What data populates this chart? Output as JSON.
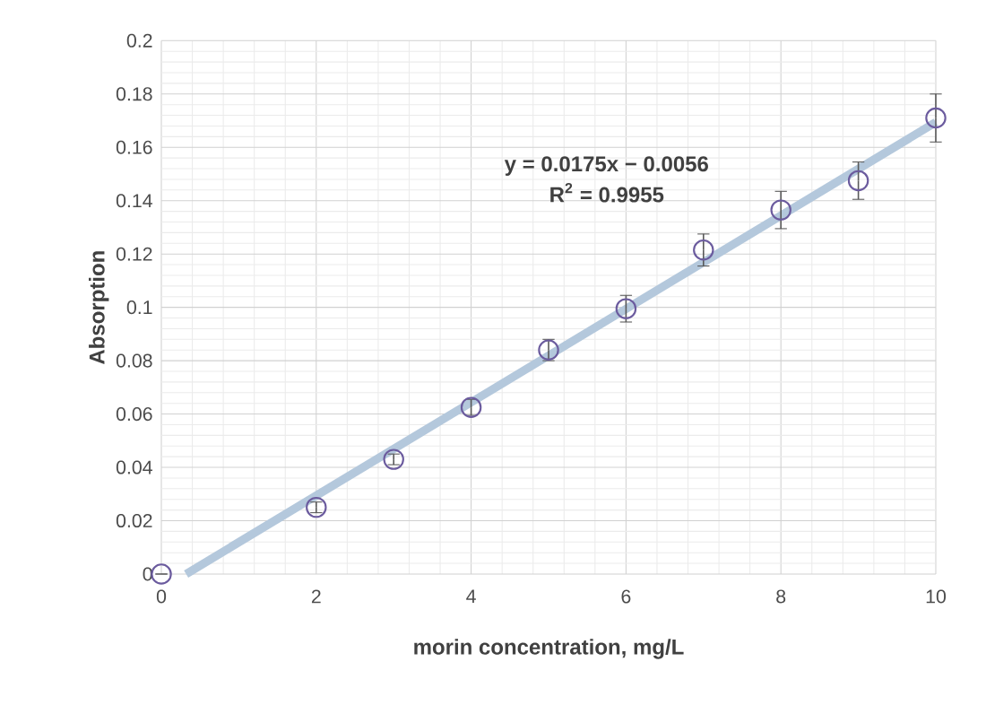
{
  "chart_data": {
    "type": "scatter",
    "xlabel": "morin concentration, mg/L",
    "ylabel": "Absorption",
    "xlim": [
      0,
      10
    ],
    "xticks": [
      0,
      2,
      4,
      6,
      8,
      10
    ],
    "ylim": [
      0,
      0.2
    ],
    "yticks": [
      0,
      0.02,
      0.04,
      0.06,
      0.08,
      0.1,
      0.12,
      0.14,
      0.16,
      0.18,
      0.2
    ],
    "grid": true,
    "marker": "circle",
    "annotations": [
      "y = 0.0175x − 0.0056",
      "R$^{2}$ = 0.9955"
    ],
    "series": [
      {
        "type": "line",
        "color": "#b4c8dc",
        "x": [
          0.32,
          10
        ],
        "values": [
          0,
          0.1694
        ],
        "marker": "none"
      },
      {
        "color": "#6b5b9e",
        "x": [
          0,
          2,
          3,
          4,
          5,
          6,
          7,
          8,
          9,
          10
        ],
        "values": [
          0,
          0.025,
          0.043,
          0.0625,
          0.084,
          0.0995,
          0.1215,
          0.1365,
          0.1475,
          0.171
        ],
        "errors": [
          null,
          0.002,
          0.002,
          0.003,
          0.004,
          0.005,
          0.006,
          0.007,
          0.007,
          0.009
        ]
      }
    ]
  }
}
